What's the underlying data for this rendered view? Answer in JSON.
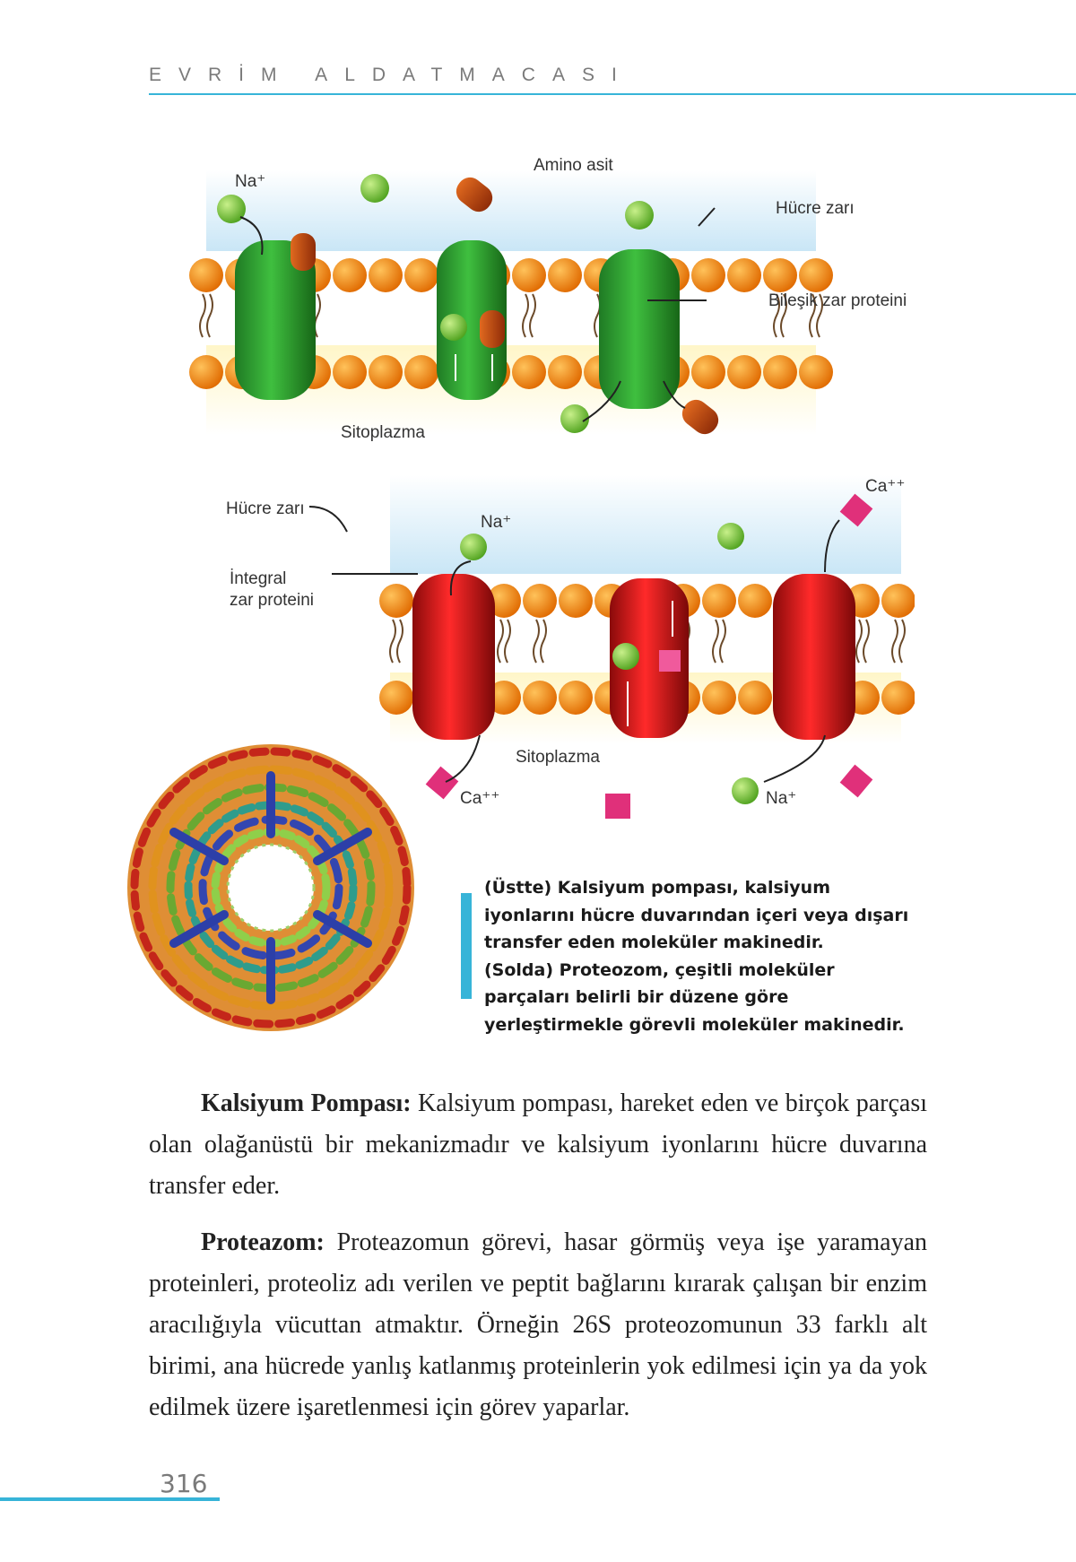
{
  "header": {
    "title": "EVRİM ALDATMACASI"
  },
  "figure_top": {
    "label_na": "Na⁺",
    "label_amino": "Amino asit",
    "label_membrane": "Hücre zarı",
    "label_protein": "Bileşik zar proteini",
    "label_cytoplasm": "Sitoplazma",
    "colors": {
      "channel": "#2e9a2e",
      "lipid": "#f0870e",
      "ion": "#7fc93a",
      "amino": "#c94d12"
    }
  },
  "figure_bottom": {
    "label_ca_top": "Ca⁺⁺",
    "label_na_top": "Na⁺",
    "label_membrane": "Hücre zarı",
    "label_integral_1": "İntegral",
    "label_integral_2": "zar proteini",
    "label_cytoplasm": "Sitoplazma",
    "label_ca_bottom": "Ca⁺⁺",
    "label_na_bottom": "Na⁺",
    "colors": {
      "pump": "#d61414",
      "calcium": "#e0307a"
    }
  },
  "caption": {
    "line1": "(Üstte) Kalsiyum pompası, kalsiyum iyonlarını hücre duvarından içeri veya dışarı transfer eden moleküler makinedir.",
    "line2": "(Solda) Proteozom, çeşitli moleküler parçaları belirli bir düzene göre yerleştirmekle görevli moleküler makinedir."
  },
  "body": {
    "para1_title": "Kalsiyum Pompası:",
    "para1_text": " Kalsiyum pompası, hareket eden ve birçok parçası olan olağanüstü bir mekanizmadır ve kalsiyum iyonlarını hücre duvarına transfer eder.",
    "para2_title": "Proteazom:",
    "para2_text": " Proteazomun görevi, hasar görmüş veya işe yaramayan proteinleri, proteoliz adı verilen ve peptit bağlarını kırarak çalışan bir enzim aracılığıyla vücuttan atmaktır. Örneğin 26S proteozomunun 33 farklı alt birimi, ana hücrede yanlış katlanmış proteinlerin yok edilmesi için ya da yok edilmek üzere işaretlenmesi için görev yaparlar."
  },
  "footer": {
    "page_number": "316"
  }
}
